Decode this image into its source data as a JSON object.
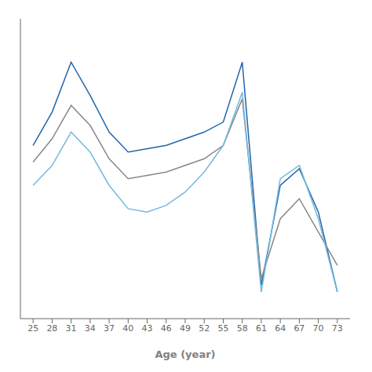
{
  "chart_data": {
    "type": "line",
    "x": [
      25,
      28,
      31,
      34,
      37,
      40,
      43,
      46,
      49,
      52,
      55,
      58,
      61,
      64,
      67,
      70,
      73
    ],
    "series": [
      {
        "color": "#2166ac",
        "values": [
          0.72,
          0.82,
          0.97,
          0.87,
          0.76,
          0.7,
          0.71,
          0.72,
          0.74,
          0.76,
          0.79,
          0.97,
          0.3,
          0.6,
          0.65,
          0.52,
          0.28
        ]
      },
      {
        "color": "#888888",
        "values": [
          0.67,
          0.74,
          0.84,
          0.78,
          0.68,
          0.62,
          0.63,
          0.64,
          0.66,
          0.68,
          0.72,
          0.86,
          0.32,
          0.5,
          0.56,
          0.46,
          0.36
        ]
      },
      {
        "color": "#74b9e0",
        "values": [
          0.6,
          0.66,
          0.76,
          0.7,
          0.6,
          0.53,
          0.52,
          0.54,
          0.58,
          0.64,
          0.72,
          0.88,
          0.28,
          0.62,
          0.66,
          0.5,
          0.28
        ]
      }
    ],
    "xlabel": "Age (year)",
    "xlim": [
      23,
      75
    ],
    "xticks": [
      25,
      28,
      31,
      34,
      37,
      40,
      43,
      46,
      49,
      52,
      55,
      58,
      61,
      64,
      67,
      70,
      73
    ],
    "ylim": [
      0.2,
      1.1
    ],
    "yticks": [],
    "grid": false,
    "tick_labels": "x"
  }
}
